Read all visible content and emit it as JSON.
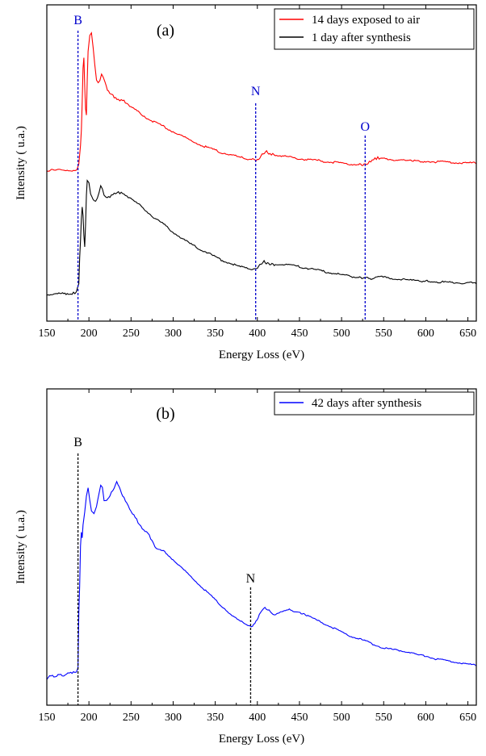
{
  "chart_data": [
    {
      "type": "line",
      "panel_label": "(a)",
      "xlabel": "Energy Loss (eV)",
      "ylabel": "Intensity ( u.a.)",
      "xlim": [
        150,
        660
      ],
      "ylim": [
        0,
        100
      ],
      "x_ticks": [
        150,
        200,
        250,
        300,
        350,
        400,
        450,
        500,
        550,
        600,
        650
      ],
      "legend": "top-right",
      "series": [
        {
          "name": "14 days exposed to air",
          "color": "#ff0000",
          "points": [
            [
              150,
              48.5
            ],
            [
              180,
              48.6
            ],
            [
              186,
              48.9
            ],
            [
              188,
              50.5
            ],
            [
              190,
              57
            ],
            [
              191,
              62
            ],
            [
              192,
              72
            ],
            [
              193,
              84
            ],
            [
              194,
              88
            ],
            [
              195,
              78
            ],
            [
              196,
              70
            ],
            [
              197,
              68
            ],
            [
              198,
              80
            ],
            [
              199,
              90
            ],
            [
              201,
              95
            ],
            [
              203,
              96
            ],
            [
              205,
              91
            ],
            [
              207,
              85
            ],
            [
              209,
              80
            ],
            [
              211,
              79
            ],
            [
              213,
              80
            ],
            [
              215,
              82
            ],
            [
              217,
              80.5
            ],
            [
              219,
              79
            ],
            [
              222,
              76
            ],
            [
              226,
              75
            ],
            [
              230,
              74
            ],
            [
              235,
              73
            ],
            [
              240,
              73
            ],
            [
              245,
              71.5
            ],
            [
              250,
              70.5
            ],
            [
              260,
              68.5
            ],
            [
              270,
              66.5
            ],
            [
              280,
              65
            ],
            [
              290,
              63.5
            ],
            [
              300,
              62
            ],
            [
              310,
              60.5
            ],
            [
              320,
              59
            ],
            [
              330,
              57.8
            ],
            [
              340,
              56.5
            ],
            [
              350,
              55.5
            ],
            [
              360,
              54.5
            ],
            [
              370,
              53.8
            ],
            [
              380,
              53
            ],
            [
              390,
              52.5
            ],
            [
              396,
              52.2
            ],
            [
              400,
              52
            ],
            [
              403,
              53
            ],
            [
              407,
              54.5
            ],
            [
              411,
              55
            ],
            [
              415,
              54.2
            ],
            [
              420,
              54
            ],
            [
              430,
              53.5
            ],
            [
              440,
              53
            ],
            [
              450,
              52.6
            ],
            [
              460,
              52.2
            ],
            [
              470,
              52
            ],
            [
              480,
              51.6
            ],
            [
              490,
              51.3
            ],
            [
              500,
              51
            ],
            [
              510,
              50.7
            ],
            [
              520,
              50.6
            ],
            [
              528,
              50.4
            ],
            [
              533,
              51.3
            ],
            [
              538,
              52.3
            ],
            [
              543,
              52.8
            ],
            [
              548,
              52.7
            ],
            [
              555,
              52.4
            ],
            [
              565,
              52.1
            ],
            [
              575,
              51.9
            ],
            [
              585,
              51.8
            ],
            [
              600,
              51.6
            ],
            [
              620,
              51.4
            ],
            [
              640,
              51.2
            ],
            [
              660,
              51
            ]
          ]
        },
        {
          "name": "1 day after synthesis",
          "color": "#000000",
          "points": [
            [
              150,
              5.5
            ],
            [
              170,
              5.7
            ],
            [
              180,
              5.8
            ],
            [
              185,
              6.2
            ],
            [
              188,
              9
            ],
            [
              189,
              18
            ],
            [
              190,
              24
            ],
            [
              191,
              32
            ],
            [
              192,
              36
            ],
            [
              193,
              33
            ],
            [
              194,
              26
            ],
            [
              195,
              22
            ],
            [
              196,
              30
            ],
            [
              197,
              40
            ],
            [
              198,
              45
            ],
            [
              200,
              44
            ],
            [
              202,
              40
            ],
            [
              205,
              38
            ],
            [
              208,
              38
            ],
            [
              210,
              39
            ],
            [
              212,
              41
            ],
            [
              214,
              43
            ],
            [
              216,
              42
            ],
            [
              218,
              39.5
            ],
            [
              220,
              39
            ],
            [
              225,
              39.5
            ],
            [
              230,
              40.5
            ],
            [
              235,
              40.8
            ],
            [
              240,
              40.5
            ],
            [
              245,
              39.5
            ],
            [
              250,
              38.5
            ],
            [
              260,
              36.5
            ],
            [
              270,
              34
            ],
            [
              280,
              31.5
            ],
            [
              290,
              29.5
            ],
            [
              300,
              27
            ],
            [
              310,
              25
            ],
            [
              320,
              23
            ],
            [
              330,
              21.5
            ],
            [
              340,
              20
            ],
            [
              350,
              18.5
            ],
            [
              360,
              17
            ],
            [
              370,
              16
            ],
            [
              380,
              15
            ],
            [
              390,
              14.3
            ],
            [
              397,
              14
            ],
            [
              400,
              14.5
            ],
            [
              404,
              16
            ],
            [
              408,
              16.8
            ],
            [
              412,
              16.2
            ],
            [
              420,
              15.8
            ],
            [
              430,
              16
            ],
            [
              440,
              15.5
            ],
            [
              450,
              15
            ],
            [
              460,
              14.5
            ],
            [
              470,
              14
            ],
            [
              480,
              13.3
            ],
            [
              490,
              12.8
            ],
            [
              500,
              12.3
            ],
            [
              510,
              11.8
            ],
            [
              520,
              11.4
            ],
            [
              528,
              11.2
            ],
            [
              535,
              11
            ],
            [
              545,
              11.5
            ],
            [
              555,
              11.2
            ],
            [
              565,
              10.8
            ],
            [
              575,
              10.5
            ],
            [
              585,
              10.3
            ],
            [
              600,
              10
            ],
            [
              620,
              9.7
            ],
            [
              640,
              9.5
            ],
            [
              660,
              9.3
            ]
          ]
        }
      ],
      "markers": [
        {
          "label": "B",
          "x": 187,
          "color": "#0000cc"
        },
        {
          "label": "N",
          "x": 398,
          "color": "#0000cc"
        },
        {
          "label": "O",
          "x": 528,
          "color": "#0000cc"
        }
      ]
    },
    {
      "type": "line",
      "panel_label": "(b)",
      "xlabel": "Energy Loss (eV)",
      "ylabel": "Intensity ( u.a.)",
      "xlim": [
        150,
        660
      ],
      "ylim": [
        0,
        100
      ],
      "x_ticks": [
        150,
        200,
        250,
        300,
        350,
        400,
        450,
        500,
        550,
        600,
        650
      ],
      "legend": "top-right",
      "series": [
        {
          "name": "42 days after synthesis",
          "color": "#0000ff",
          "points": [
            [
              150,
              5.5
            ],
            [
              155,
              6.8
            ],
            [
              160,
              6.2
            ],
            [
              165,
              7.2
            ],
            [
              170,
              6.5
            ],
            [
              175,
              7.6
            ],
            [
              180,
              7.8
            ],
            [
              185,
              8
            ],
            [
              187,
              9.5
            ],
            [
              188,
              30
            ],
            [
              189,
              40
            ],
            [
              190,
              55
            ],
            [
              191,
              60
            ],
            [
              192,
              58
            ],
            [
              193,
              63
            ],
            [
              195,
              68
            ],
            [
              197,
              74
            ],
            [
              199,
              77
            ],
            [
              201,
              72
            ],
            [
              203,
              68
            ],
            [
              206,
              67
            ],
            [
              209,
              70
            ],
            [
              212,
              75
            ],
            [
              214,
              78
            ],
            [
              216,
              77
            ],
            [
              218,
              72
            ],
            [
              221,
              72
            ],
            [
              225,
              74
            ],
            [
              230,
              77
            ],
            [
              233,
              79
            ],
            [
              236,
              77
            ],
            [
              240,
              74
            ],
            [
              245,
              71
            ],
            [
              250,
              68
            ],
            [
              255,
              66
            ],
            [
              260,
              63
            ],
            [
              265,
              61
            ],
            [
              270,
              60
            ],
            [
              275,
              57
            ],
            [
              280,
              54
            ],
            [
              290,
              53
            ],
            [
              300,
              50
            ],
            [
              310,
              47
            ],
            [
              320,
              44
            ],
            [
              330,
              41
            ],
            [
              340,
              38
            ],
            [
              350,
              35
            ],
            [
              360,
              32
            ],
            [
              370,
              29
            ],
            [
              380,
              27
            ],
            [
              390,
              25.5
            ],
            [
              393,
              25
            ],
            [
              397,
              26
            ],
            [
              401,
              28.5
            ],
            [
              405,
              31
            ],
            [
              409,
              32
            ],
            [
              414,
              31
            ],
            [
              420,
              29.5
            ],
            [
              426,
              30
            ],
            [
              432,
              31
            ],
            [
              438,
              31.5
            ],
            [
              445,
              30.5
            ],
            [
              452,
              30
            ],
            [
              460,
              29
            ],
            [
              470,
              27.5
            ],
            [
              480,
              26
            ],
            [
              490,
              24.5
            ],
            [
              500,
              23
            ],
            [
              510,
              21.5
            ],
            [
              520,
              20.5
            ],
            [
              530,
              19.5
            ],
            [
              540,
              18
            ],
            [
              550,
              17
            ],
            [
              560,
              16.5
            ],
            [
              570,
              16
            ],
            [
              580,
              15.5
            ],
            [
              590,
              14.5
            ],
            [
              600,
              14
            ],
            [
              610,
              13
            ],
            [
              620,
              12.5
            ],
            [
              630,
              12
            ],
            [
              640,
              11.5
            ],
            [
              650,
              11
            ],
            [
              660,
              10.5
            ]
          ]
        }
      ],
      "markers": [
        {
          "label": "B",
          "x": 187,
          "color": "#000000"
        },
        {
          "label": "N",
          "x": 392,
          "color": "#000000"
        }
      ]
    }
  ]
}
